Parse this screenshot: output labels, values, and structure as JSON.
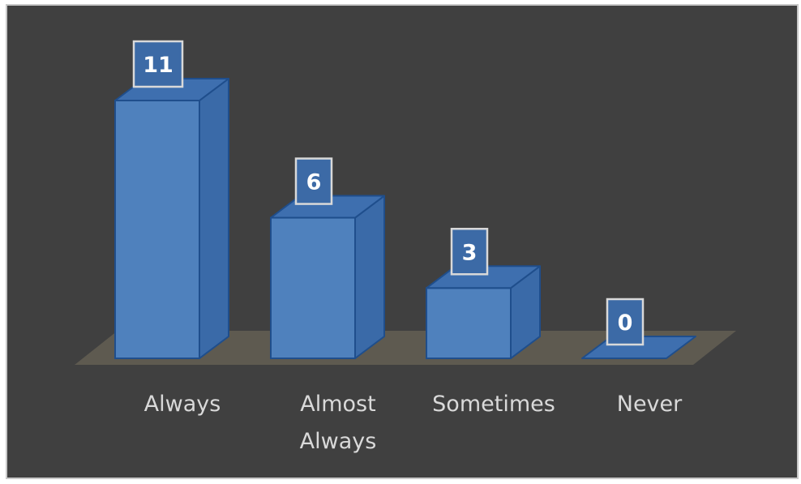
{
  "chart_data": {
    "type": "bar",
    "style": "3d-column",
    "categories": [
      "Always",
      "Almost Always",
      "Sometimes",
      "Never"
    ],
    "category_lines": [
      [
        "Always"
      ],
      [
        "Almost",
        "Always"
      ],
      [
        "Sometimes"
      ],
      [
        "Never"
      ]
    ],
    "values": [
      11,
      6,
      3,
      0
    ],
    "data_labels": [
      "11",
      "6",
      "3",
      "0"
    ],
    "title": "",
    "xlabel": "",
    "ylabel": "",
    "ylim": [
      0,
      11
    ],
    "grid": false,
    "legend": "none",
    "colors": {
      "background": "#404040",
      "frame": "#c8c8c8",
      "bar_front": "#4f81bd",
      "bar_side": "#3a6aa8",
      "bar_top": "#3e6faf",
      "bar_edge": "#1f4e8c",
      "floor": "#5e5a50",
      "label_box": "#3c6aa6",
      "label_border": "#d9d9d9",
      "label_text": "#ffffff",
      "axis_text": "#d9d9d9"
    }
  }
}
